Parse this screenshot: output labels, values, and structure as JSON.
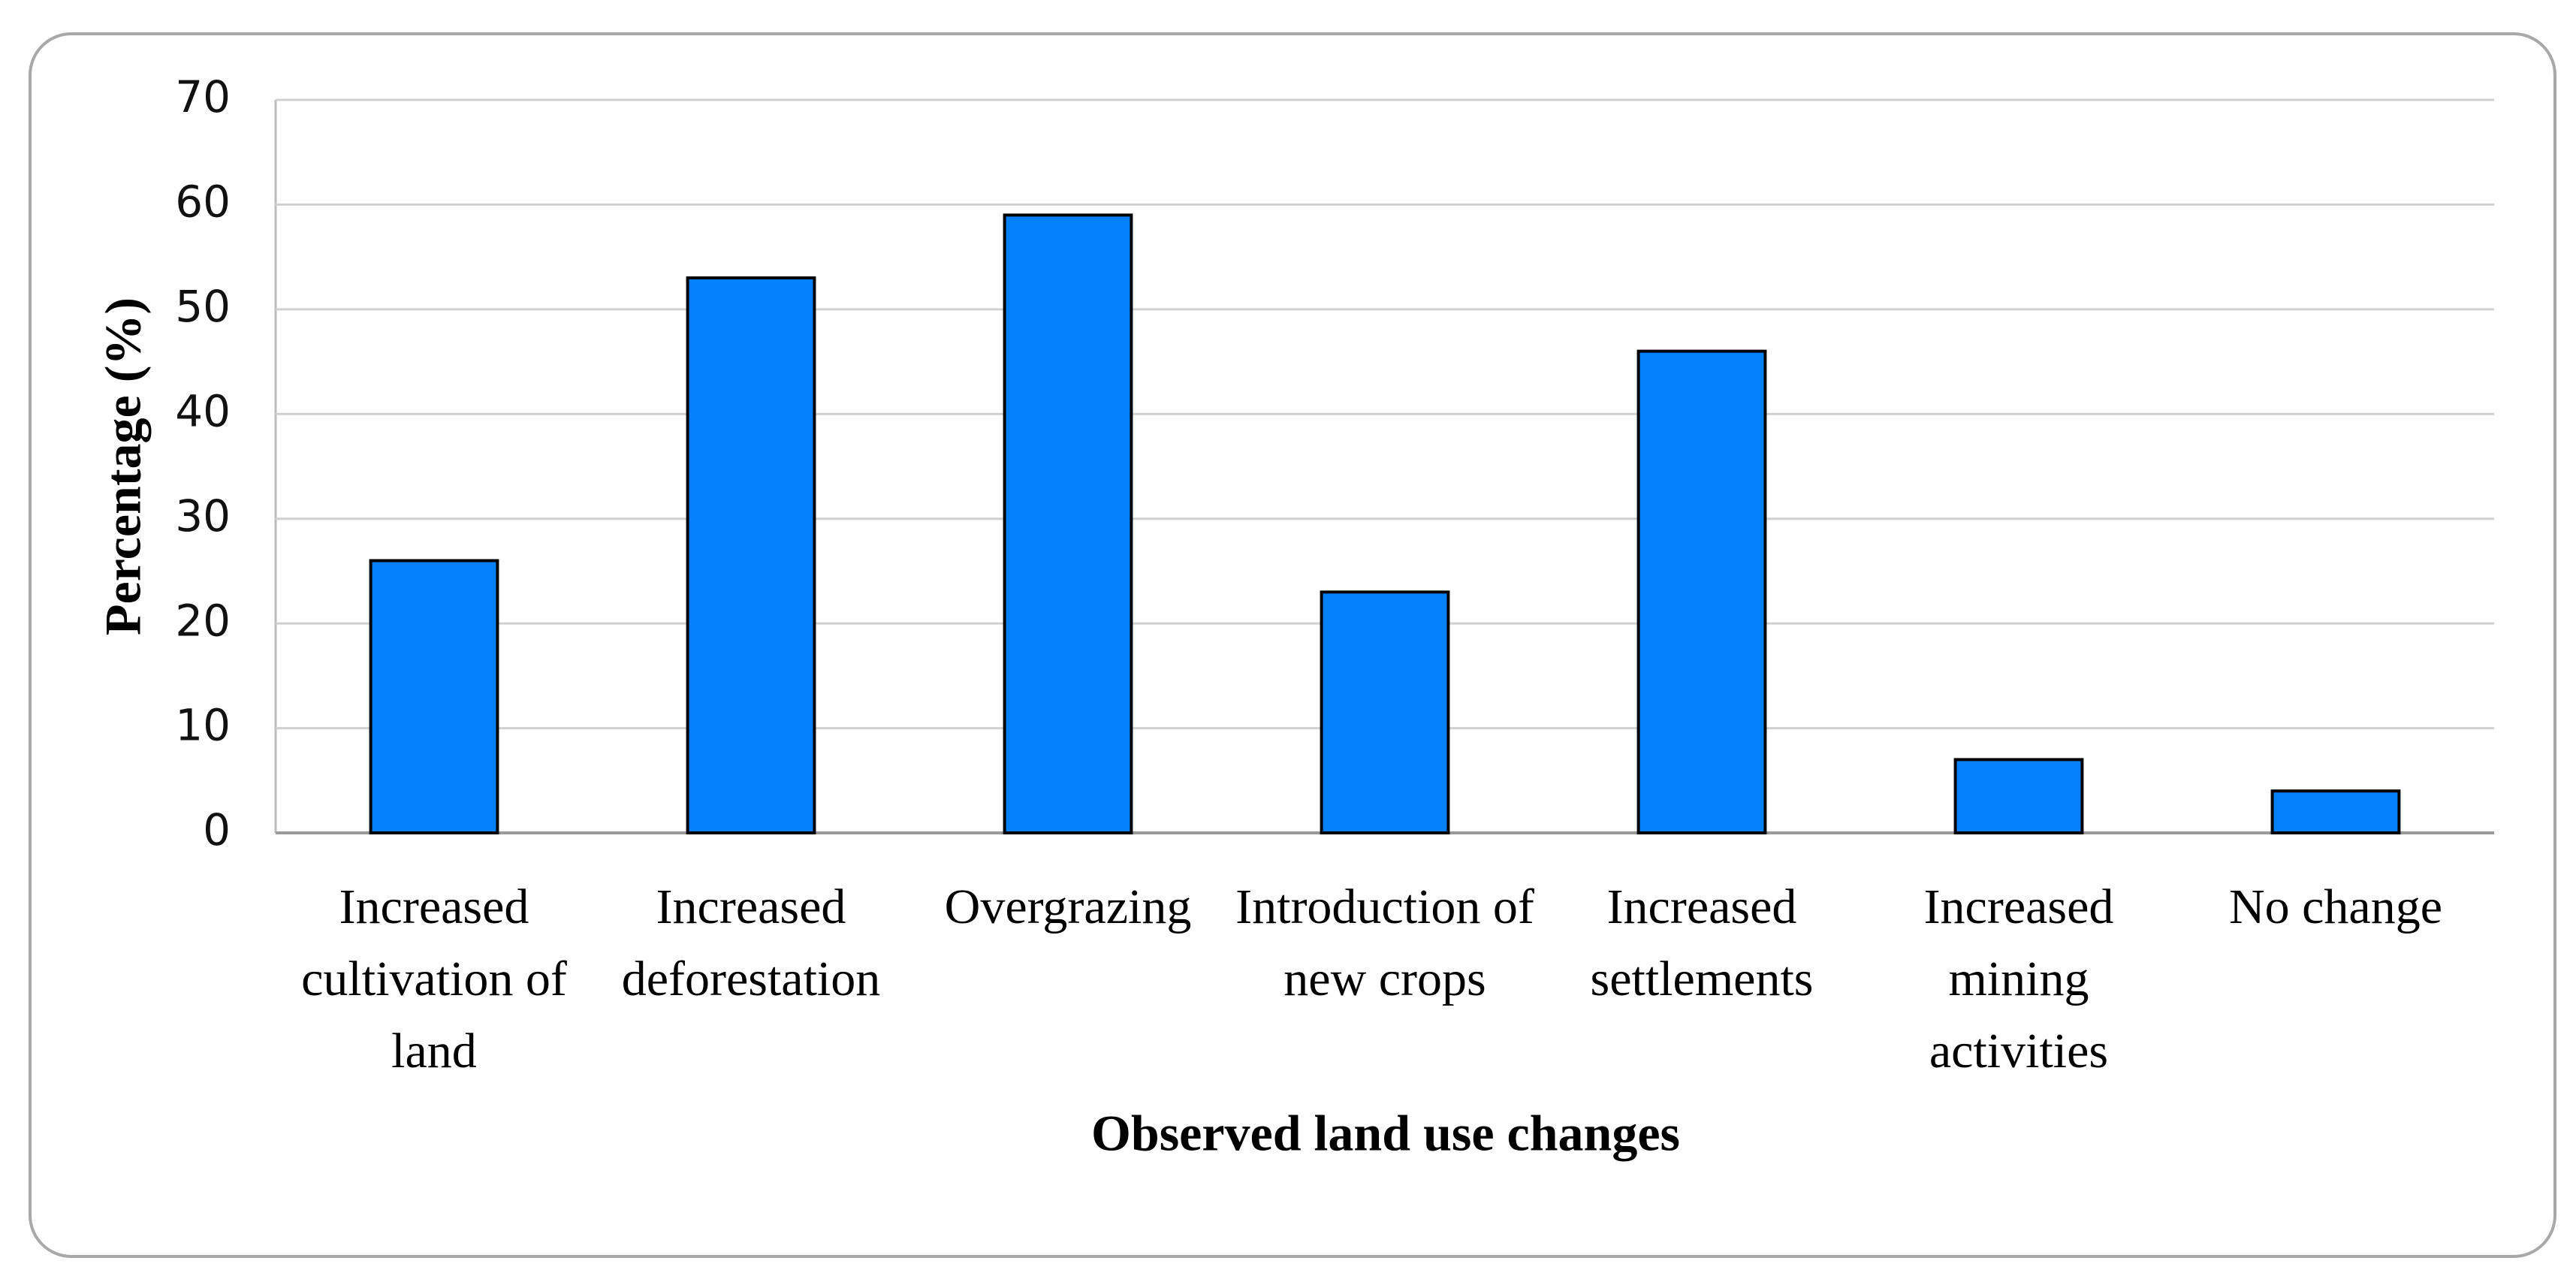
{
  "chart_data": {
    "type": "bar",
    "categories": [
      "Increased cultivation of land",
      "Increased deforestation",
      "Overgrazing",
      "Introduction of new crops",
      "Increased settlements",
      "Increased mining activities",
      "No change"
    ],
    "values": [
      26,
      53,
      59,
      23,
      46,
      7,
      4
    ],
    "color": "#0582fb",
    "xlabel": "Observed land use changes",
    "ylabel": "Percentage (%)",
    "ylim": [
      0,
      70
    ],
    "yticks": [
      0,
      10,
      20,
      30,
      40,
      50,
      60,
      70
    ],
    "grid": true
  }
}
